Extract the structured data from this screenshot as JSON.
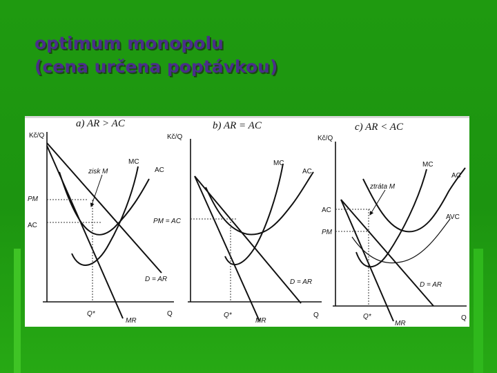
{
  "title": {
    "line1": "optimum monopolu",
    "line2": "(cena určena poptávkou)"
  },
  "panels": [
    {
      "heading": "a)  AR > AC",
      "y_axis": "Kč/Q",
      "x_axis": "Q",
      "labels": {
        "mc": "MC",
        "ac": "AC",
        "da": "D = AR",
        "mr": "MR",
        "qstar": "Q*",
        "pm": "PM",
        "ac_level": "AC",
        "note": "zisk M"
      }
    },
    {
      "heading": "b)  AR = AC",
      "y_axis": "Kč/Q",
      "x_axis": "Q",
      "labels": {
        "mc": "MC",
        "ac": "AC",
        "da": "D = AR",
        "mr": "MR",
        "qstar": "Q*",
        "pm_ac": "PM = AC"
      }
    },
    {
      "heading": "c)  AR < AC",
      "y_axis": "Kč/Q",
      "x_axis": "Q",
      "labels": {
        "mc": "MC",
        "ac": "AC",
        "avc": "AVC",
        "da": "D = AR",
        "mr": "MR",
        "qstar": "Q*",
        "ac_level": "AC",
        "pm": "PM",
        "note": "ztráta M"
      }
    }
  ]
}
